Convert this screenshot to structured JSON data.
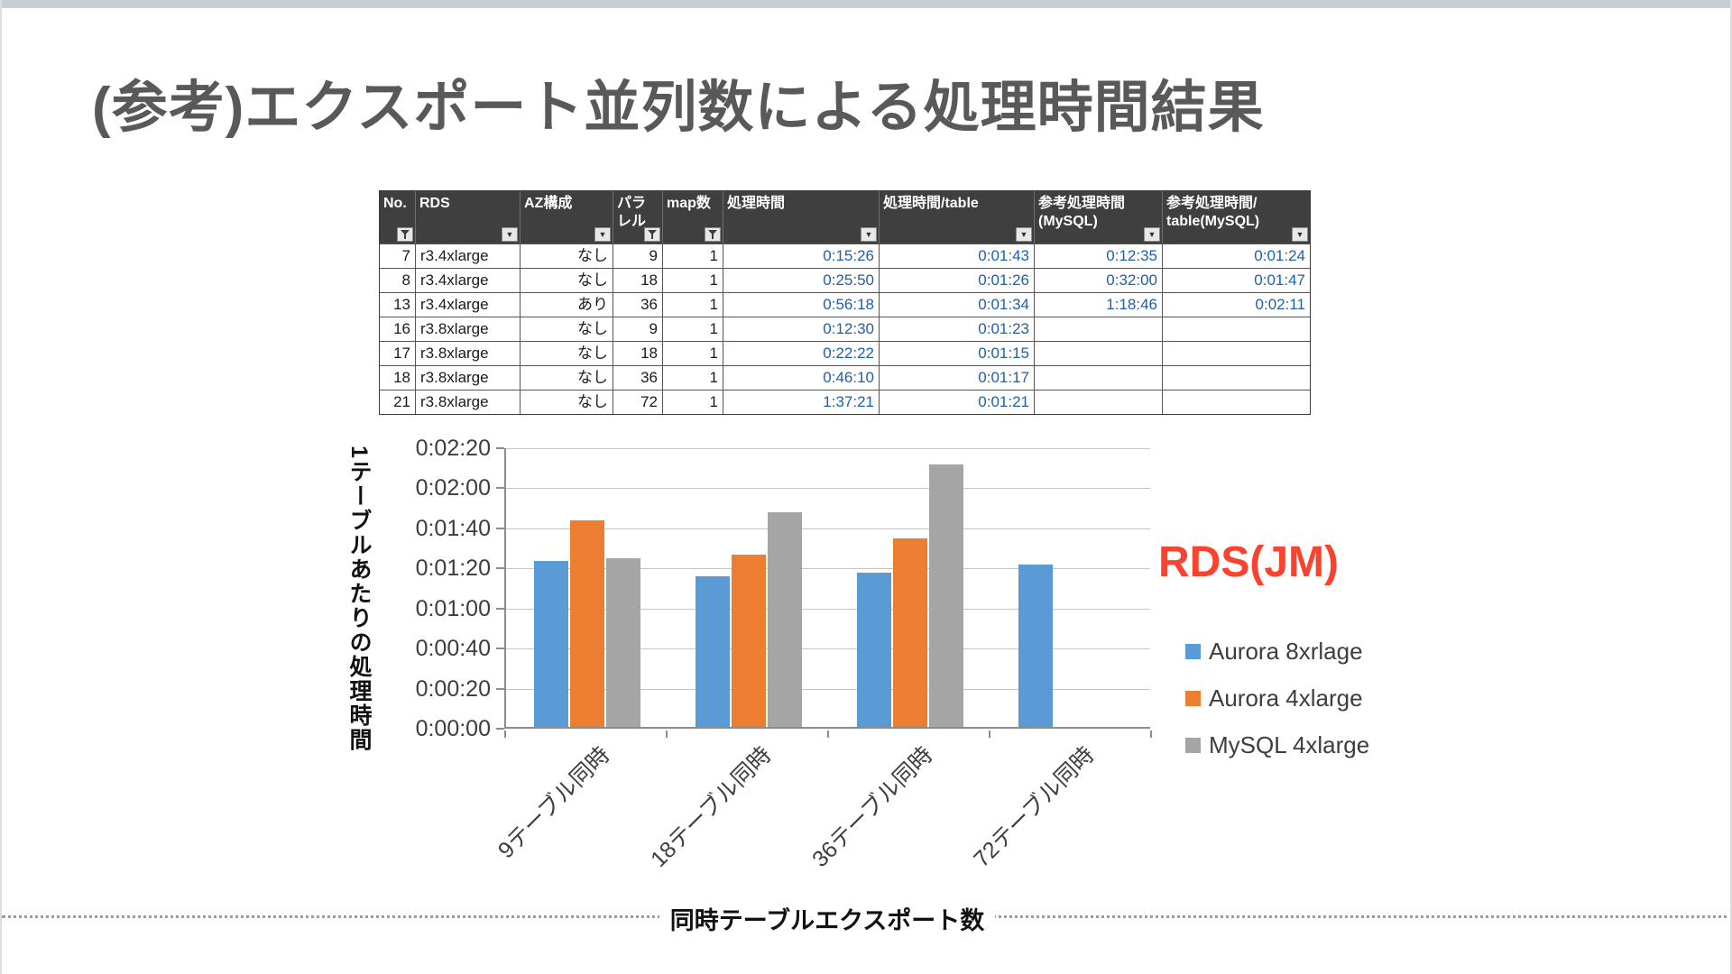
{
  "page": {
    "title": "(参考)エクスポート並列数による処理時間結果"
  },
  "colors": {
    "time_text": "#1F5FA8",
    "header_bg": "#3F3F3F",
    "title_text": "#595959"
  },
  "table": {
    "columns": [
      {
        "label": "No.",
        "filtered": true
      },
      {
        "label": "RDS",
        "filtered": false
      },
      {
        "label": "AZ構成",
        "filtered": false
      },
      {
        "label": "パラレル",
        "filtered": true
      },
      {
        "label": "map数",
        "filtered": true
      },
      {
        "label": "処理時間",
        "filtered": false
      },
      {
        "label": "処理時間/table",
        "filtered": false
      },
      {
        "label": "参考処理時間\n(MySQL)",
        "filtered": false
      },
      {
        "label": "参考処理時間/\ntable(MySQL)",
        "filtered": false
      }
    ],
    "rows": [
      [
        "7",
        "r3.4xlarge",
        "なし",
        "9",
        "1",
        "0:15:26",
        "0:01:43",
        "0:12:35",
        "0:01:24"
      ],
      [
        "8",
        "r3.4xlarge",
        "なし",
        "18",
        "1",
        "0:25:50",
        "0:01:26",
        "0:32:00",
        "0:01:47"
      ],
      [
        "13",
        "r3.4xlarge",
        "あり",
        "36",
        "1",
        "0:56:18",
        "0:01:34",
        "1:18:46",
        "0:02:11"
      ],
      [
        "16",
        "r3.8xlarge",
        "なし",
        "9",
        "1",
        "0:12:30",
        "0:01:23",
        "",
        ""
      ],
      [
        "17",
        "r3.8xlarge",
        "なし",
        "18",
        "1",
        "0:22:22",
        "0:01:15",
        "",
        ""
      ],
      [
        "18",
        "r3.8xlarge",
        "なし",
        "36",
        "1",
        "0:46:10",
        "0:01:17",
        "",
        ""
      ],
      [
        "21",
        "r3.8xlarge",
        "なし",
        "72",
        "1",
        "1:37:21",
        "0:01:21",
        "",
        ""
      ]
    ]
  },
  "chart_data": {
    "type": "bar",
    "title": "",
    "categories": [
      "9テーブル同時",
      "18テーブル同時",
      "36テーブル同時",
      "72テーブル同時"
    ],
    "series": [
      {
        "name": "Aurora 8xrlage",
        "color": "#5B9BD5",
        "values": [
          "0:01:23",
          "0:01:15",
          "0:01:17",
          "0:01:21"
        ],
        "values_seconds": [
          83,
          75,
          77,
          81
        ]
      },
      {
        "name": "Aurora 4xlarge",
        "color": "#ED7D31",
        "values": [
          "0:01:43",
          "0:01:26",
          "0:01:34",
          null
        ],
        "values_seconds": [
          103,
          86,
          94,
          null
        ]
      },
      {
        "name": "MySQL 4xlarge",
        "color": "#A5A5A5",
        "values": [
          "0:01:24",
          "0:01:47",
          "0:02:11",
          null
        ],
        "values_seconds": [
          84,
          107,
          131,
          null
        ]
      }
    ],
    "ylabel": "1テーブルあたりの処理時間",
    "xlabel": "同時テーブルエクスポート数",
    "yticks": [
      "0:02:20",
      "0:02:00",
      "0:01:40",
      "0:01:20",
      "0:01:00",
      "0:00:40",
      "0:00:20",
      "0:00:00"
    ],
    "ylim_seconds": [
      0,
      140
    ],
    "grid": true,
    "legend_position": "right"
  },
  "annotation": {
    "label": "RDS(JM)",
    "color": "#F9432F"
  }
}
